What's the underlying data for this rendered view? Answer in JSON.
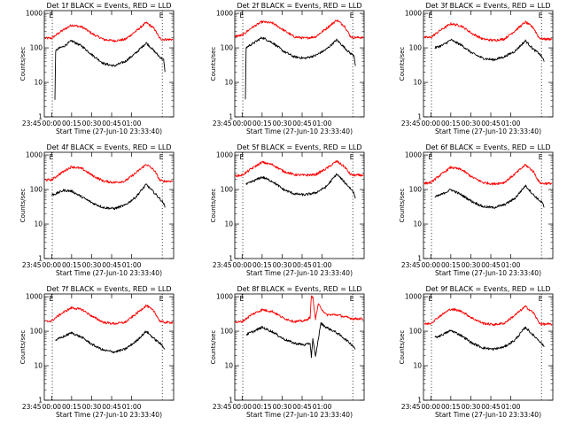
{
  "chart_data": [
    {
      "type": "line",
      "title": "Det 1f BLACK = Events, RED = LLD",
      "xlabel": "Start Time (27-Jun-10 23:33:40)",
      "ylabel": "Counts/sec",
      "x_ticks": [
        "23:45",
        "00:00",
        "00:15",
        "00:30",
        "00:45",
        "01:00"
      ],
      "y_ticks": [
        "1",
        "10",
        "100",
        "1000"
      ],
      "x_range_min": [
        -0.5,
        96.5
      ],
      "ylim": [
        1,
        1200
      ],
      "y_scale": "log",
      "markers": [
        {
          "x": 5.5,
          "label": "E"
        },
        {
          "x": 88,
          "label": "E"
        }
      ],
      "series": [
        {
          "color": "#ff0000",
          "x": [
            0,
            5,
            12,
            20,
            28,
            36,
            44,
            52,
            60,
            68,
            76,
            82,
            86,
            88,
            90,
            96
          ],
          "y": [
            190,
            190,
            300,
            460,
            400,
            250,
            175,
            160,
            175,
            300,
            540,
            360,
            190,
            175,
            175,
            175
          ]
        },
        {
          "color": "#000000",
          "x": [
            7.5,
            8,
            10,
            14,
            20,
            28,
            36,
            44,
            52,
            60,
            68,
            76,
            82,
            86,
            89,
            90
          ],
          "y": [
            3,
            80,
            95,
            110,
            160,
            110,
            60,
            35,
            30,
            40,
            70,
            140,
            80,
            55,
            45,
            20
          ]
        }
      ]
    },
    {
      "type": "line",
      "title": "Det 2f BLACK = Events, RED = LLD",
      "xlabel": "Start Time (27-Jun-10 23:33:40)",
      "ylabel": "Counts/sec",
      "x_ticks": [
        "23:45",
        "00:00",
        "00:15",
        "00:30",
        "00:45",
        "01:00"
      ],
      "y_ticks": [
        "1",
        "10",
        "100",
        "1000"
      ],
      "x_range_min": [
        -0.5,
        96.5
      ],
      "ylim": [
        1,
        1200
      ],
      "y_scale": "log",
      "markers": [
        {
          "x": 5.5,
          "label": "E"
        },
        {
          "x": 88,
          "label": "E"
        }
      ],
      "series": [
        {
          "color": "#ff0000",
          "x": [
            0,
            5,
            12,
            20,
            28,
            36,
            44,
            52,
            60,
            68,
            76,
            82,
            86,
            88,
            90,
            96
          ],
          "y": [
            220,
            230,
            380,
            570,
            520,
            330,
            210,
            190,
            210,
            360,
            640,
            420,
            220,
            200,
            200,
            200
          ]
        },
        {
          "color": "#000000",
          "x": [
            7.5,
            8,
            10,
            14,
            20,
            28,
            36,
            44,
            52,
            60,
            68,
            76,
            82,
            86,
            89,
            90
          ],
          "y": [
            3,
            100,
            115,
            140,
            200,
            140,
            80,
            55,
            50,
            60,
            90,
            170,
            100,
            70,
            60,
            30
          ]
        }
      ]
    },
    {
      "type": "line",
      "title": "Det 3f BLACK = Events, RED = LLD",
      "xlabel": "Start Time (27-Jun-10 23:33:40)",
      "ylabel": "Counts/sec",
      "x_ticks": [
        "23:45",
        "00:00",
        "00:15",
        "00:30",
        "00:45",
        "01:00"
      ],
      "y_ticks": [
        "1",
        "10",
        "100",
        "1000"
      ],
      "x_range_min": [
        -0.5,
        96.5
      ],
      "ylim": [
        1,
        1200
      ],
      "y_scale": "log",
      "markers": [
        {
          "x": 5.5,
          "label": "E"
        },
        {
          "x": 88,
          "label": "E"
        }
      ],
      "series": [
        {
          "color": "#ff0000",
          "x": [
            0,
            5,
            12,
            20,
            28,
            36,
            44,
            52,
            60,
            68,
            76,
            82,
            86,
            88,
            90,
            96
          ],
          "y": [
            200,
            200,
            320,
            500,
            430,
            260,
            180,
            165,
            180,
            310,
            560,
            380,
            200,
            185,
            180,
            180
          ]
        },
        {
          "color": "#000000",
          "x": [
            8,
            14,
            20,
            28,
            36,
            44,
            52,
            60,
            68,
            76,
            82,
            86,
            89,
            90
          ],
          "y": [
            100,
            120,
            170,
            120,
            70,
            50,
            45,
            55,
            80,
            160,
            90,
            70,
            50,
            40
          ]
        }
      ]
    },
    {
      "type": "line",
      "title": "Det 4f BLACK = Events, RED = LLD",
      "xlabel": "Start Time (27-Jun-10 23:33:40)",
      "ylabel": "Counts/sec",
      "x_ticks": [
        "23:45",
        "00:00",
        "00:15",
        "00:30",
        "00:45",
        "01:00"
      ],
      "y_ticks": [
        "1",
        "10",
        "100",
        "1000"
      ],
      "x_range_min": [
        -0.5,
        96.5
      ],
      "ylim": [
        1,
        1200
      ],
      "y_scale": "log",
      "markers": [
        {
          "x": 5.5,
          "label": "E"
        },
        {
          "x": 88,
          "label": "E"
        }
      ],
      "series": [
        {
          "color": "#ff0000",
          "x": [
            0,
            5,
            12,
            20,
            28,
            36,
            44,
            52,
            60,
            68,
            76,
            82,
            86,
            88,
            90,
            96
          ],
          "y": [
            190,
            190,
            300,
            460,
            400,
            250,
            175,
            160,
            175,
            300,
            540,
            360,
            190,
            175,
            175,
            175
          ]
        },
        {
          "color": "#000000",
          "x": [
            5,
            8,
            14,
            20,
            28,
            36,
            44,
            52,
            60,
            68,
            76,
            82,
            86,
            89,
            90
          ],
          "y": [
            70,
            75,
            95,
            90,
            60,
            40,
            30,
            28,
            35,
            60,
            140,
            80,
            55,
            40,
            30
          ]
        }
      ]
    },
    {
      "type": "line",
      "title": "Det 5f BLACK = Events, RED = LLD",
      "xlabel": "Start Time (27-Jun-10 23:33:40)",
      "ylabel": "Counts/sec",
      "x_ticks": [
        "23:45",
        "00:00",
        "00:15",
        "00:30",
        "00:45",
        "01:00"
      ],
      "y_ticks": [
        "1",
        "10",
        "100",
        "1000"
      ],
      "x_range_min": [
        -0.5,
        96.5
      ],
      "ylim": [
        1,
        1200
      ],
      "y_scale": "log",
      "markers": [
        {
          "x": 5.5,
          "label": "E"
        },
        {
          "x": 88,
          "label": "E"
        }
      ],
      "series": [
        {
          "color": "#ff0000",
          "x": [
            0,
            5,
            12,
            20,
            28,
            36,
            44,
            52,
            60,
            68,
            76,
            82,
            86,
            88,
            90,
            96
          ],
          "y": [
            250,
            260,
            400,
            620,
            520,
            340,
            270,
            260,
            270,
            400,
            660,
            450,
            280,
            260,
            260,
            260
          ]
        },
        {
          "color": "#000000",
          "x": [
            8,
            14,
            20,
            28,
            36,
            44,
            52,
            60,
            68,
            76,
            82,
            86,
            89,
            90
          ],
          "y": [
            140,
            180,
            230,
            170,
            100,
            75,
            70,
            80,
            120,
            280,
            160,
            110,
            80,
            55
          ]
        }
      ]
    },
    {
      "type": "line",
      "title": "Det 6f BLACK = Events, RED = LLD",
      "xlabel": "Start Time (27-Jun-10 23:33:40)",
      "ylabel": "Counts/sec",
      "x_ticks": [
        "23:45",
        "00:00",
        "00:15",
        "00:30",
        "00:45",
        "01:00"
      ],
      "y_ticks": [
        "1",
        "10",
        "100",
        "1000"
      ],
      "x_range_min": [
        -0.5,
        96.5
      ],
      "ylim": [
        1,
        1200
      ],
      "y_scale": "log",
      "markers": [
        {
          "x": 5.5,
          "label": "E"
        },
        {
          "x": 88,
          "label": "E"
        }
      ],
      "series": [
        {
          "color": "#ff0000",
          "x": [
            0,
            5,
            12,
            20,
            28,
            36,
            44,
            52,
            60,
            68,
            76,
            82,
            86,
            88,
            90,
            96
          ],
          "y": [
            150,
            160,
            260,
            440,
            380,
            230,
            160,
            145,
            160,
            280,
            520,
            330,
            170,
            150,
            150,
            150
          ]
        },
        {
          "color": "#000000",
          "x": [
            8,
            14,
            20,
            28,
            36,
            44,
            52,
            60,
            68,
            76,
            82,
            86,
            89,
            90
          ],
          "y": [
            60,
            75,
            100,
            70,
            45,
            32,
            30,
            36,
            55,
            130,
            70,
            50,
            40,
            30
          ]
        }
      ]
    },
    {
      "type": "line",
      "title": "Det 7f BLACK = Events, RED = LLD",
      "xlabel": "Start Time (27-Jun-10 23:33:40)",
      "ylabel": "Counts/sec",
      "x_ticks": [
        "23:45",
        "00:00",
        "00:15",
        "00:30",
        "00:45",
        "01:00"
      ],
      "y_ticks": [
        "1",
        "10",
        "100",
        "1000"
      ],
      "x_range_min": [
        -0.5,
        96.5
      ],
      "ylim": [
        1,
        1200
      ],
      "y_scale": "log",
      "markers": [
        {
          "x": 5.5,
          "label": "E"
        },
        {
          "x": 88,
          "label": "E"
        }
      ],
      "series": [
        {
          "color": "#ff0000",
          "x": [
            0,
            5,
            12,
            20,
            28,
            36,
            44,
            52,
            60,
            68,
            76,
            82,
            86,
            88,
            90,
            96
          ],
          "y": [
            190,
            200,
            320,
            480,
            420,
            260,
            180,
            165,
            180,
            310,
            560,
            370,
            200,
            185,
            180,
            180
          ]
        },
        {
          "color": "#000000",
          "x": [
            8,
            14,
            20,
            28,
            36,
            44,
            52,
            60,
            68,
            76,
            82,
            86,
            89,
            90
          ],
          "y": [
            55,
            70,
            90,
            65,
            40,
            28,
            25,
            30,
            50,
            100,
            60,
            45,
            35,
            30
          ]
        }
      ]
    },
    {
      "type": "line",
      "title": "Det 8f BLACK = Events, RED = LLD",
      "xlabel": "Start Time (27-Jun-10 23:33:40)",
      "ylabel": "Counts/sec",
      "x_ticks": [
        "23:45",
        "00:00",
        "00:15",
        "00:30",
        "00:45",
        "01:00"
      ],
      "y_ticks": [
        "1",
        "10",
        "100",
        "1000"
      ],
      "x_range_min": [
        -0.5,
        96.5
      ],
      "ylim": [
        1,
        1200
      ],
      "y_scale": "log",
      "markers": [
        {
          "x": 5.5,
          "label": "E"
        },
        {
          "x": 88,
          "label": "E"
        }
      ],
      "series": [
        {
          "color": "#ff0000",
          "x": [
            0,
            5,
            12,
            20,
            28,
            36,
            44,
            52,
            56,
            57,
            58,
            60,
            62,
            64,
            68,
            76,
            82,
            86,
            88,
            90,
            96
          ],
          "y": [
            180,
            190,
            300,
            420,
            370,
            240,
            190,
            200,
            250,
            1000,
            1000,
            220,
            600,
            480,
            300,
            300,
            260,
            240,
            230,
            230,
            230
          ]
        },
        {
          "color": "#000000",
          "x": [
            8,
            14,
            20,
            28,
            36,
            44,
            52,
            56,
            57,
            58,
            60,
            62,
            64,
            68,
            76,
            82,
            86,
            89,
            90
          ],
          "y": [
            80,
            100,
            130,
            95,
            60,
            45,
            40,
            45,
            18,
            60,
            18,
            55,
            170,
            130,
            90,
            60,
            45,
            35,
            30
          ]
        }
      ]
    },
    {
      "type": "line",
      "title": "Det 9f BLACK = Events, RED = LLD",
      "xlabel": "Start Time (27-Jun-10 23:33:40)",
      "ylabel": "Counts/sec",
      "x_ticks": [
        "23:45",
        "00:00",
        "00:15",
        "00:30",
        "00:45",
        "01:00"
      ],
      "y_ticks": [
        "1",
        "10",
        "100",
        "1000"
      ],
      "x_range_min": [
        -0.5,
        96.5
      ],
      "ylim": [
        1,
        1200
      ],
      "y_scale": "log",
      "markers": [
        {
          "x": 5.5,
          "label": "E"
        },
        {
          "x": 88,
          "label": "E"
        }
      ],
      "series": [
        {
          "color": "#ff0000",
          "x": [
            0,
            5,
            12,
            20,
            28,
            36,
            44,
            52,
            60,
            68,
            76,
            82,
            86,
            88,
            90,
            96
          ],
          "y": [
            160,
            170,
            280,
            440,
            380,
            240,
            170,
            155,
            170,
            290,
            520,
            340,
            180,
            160,
            160,
            160
          ]
        },
        {
          "color": "#000000",
          "x": [
            8,
            14,
            20,
            28,
            36,
            44,
            52,
            60,
            68,
            76,
            82,
            86,
            89,
            90
          ],
          "y": [
            65,
            80,
            105,
            75,
            45,
            33,
            30,
            35,
            55,
            130,
            75,
            55,
            40,
            35
          ]
        }
      ]
    }
  ]
}
